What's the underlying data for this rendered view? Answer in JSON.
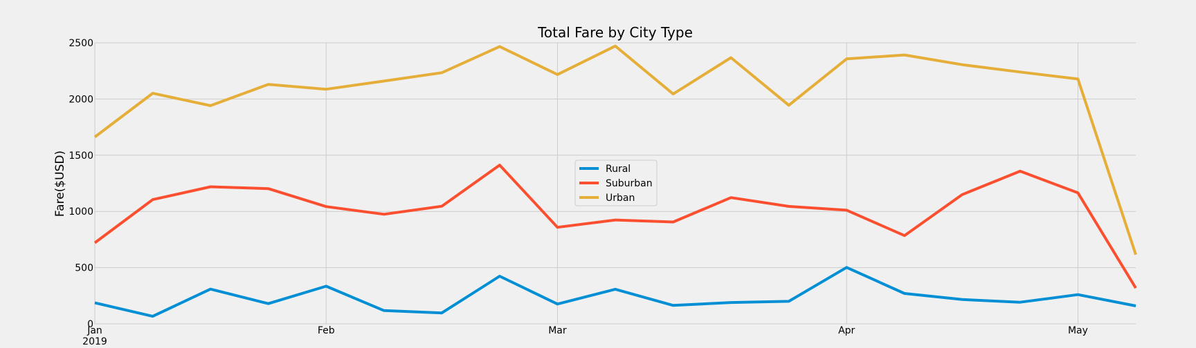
{
  "chart_data": {
    "type": "line",
    "title": "Total Fare by City Type",
    "xlabel": "",
    "ylabel": "Fare($USD)",
    "x": [
      "2019-01-06",
      "2019-01-13",
      "2019-01-20",
      "2019-01-27",
      "2019-02-03",
      "2019-02-10",
      "2019-02-17",
      "2019-02-24",
      "2019-03-03",
      "2019-03-10",
      "2019-03-17",
      "2019-03-24",
      "2019-03-31",
      "2019-04-07",
      "2019-04-14",
      "2019-04-21",
      "2019-04-28",
      "2019-05-05",
      "2019-05-12"
    ],
    "x_ticks": [
      {
        "date": "2019-01-06",
        "label": "Jan",
        "sublabel": "2019"
      },
      {
        "date": "2019-02-03",
        "label": "Feb",
        "sublabel": ""
      },
      {
        "date": "2019-03-03",
        "label": "Mar",
        "sublabel": ""
      },
      {
        "date": "2019-04-07",
        "label": "Apr",
        "sublabel": ""
      },
      {
        "date": "2019-05-05",
        "label": "May",
        "sublabel": ""
      }
    ],
    "ylim": [
      0,
      2500
    ],
    "yticks": [
      0,
      500,
      1000,
      1500,
      2000,
      2500
    ],
    "grid": true,
    "legend_position": "center",
    "series": [
      {
        "name": "Rural",
        "color": "#008fd5",
        "values": [
          187,
          67,
          309,
          180,
          335,
          118,
          97,
          424,
          176,
          308,
          164,
          190,
          200,
          502,
          270,
          216,
          192,
          260,
          160
        ]
      },
      {
        "name": "Suburban",
        "color": "#fc4f30",
        "values": [
          721,
          1105,
          1219,
          1203,
          1043,
          975,
          1046,
          1412,
          859,
          924,
          906,
          1123,
          1045,
          1011,
          785,
          1150,
          1358,
          1165,
          318
        ]
      },
      {
        "name": "Urban",
        "color": "#e5ae38",
        "values": [
          1662,
          2051,
          1941,
          2130,
          2087,
          2160,
          2234,
          2467,
          2218,
          2471,
          2045,
          2368,
          1945,
          2357,
          2392,
          2305,
          2240,
          2178,
          616
        ]
      }
    ]
  }
}
